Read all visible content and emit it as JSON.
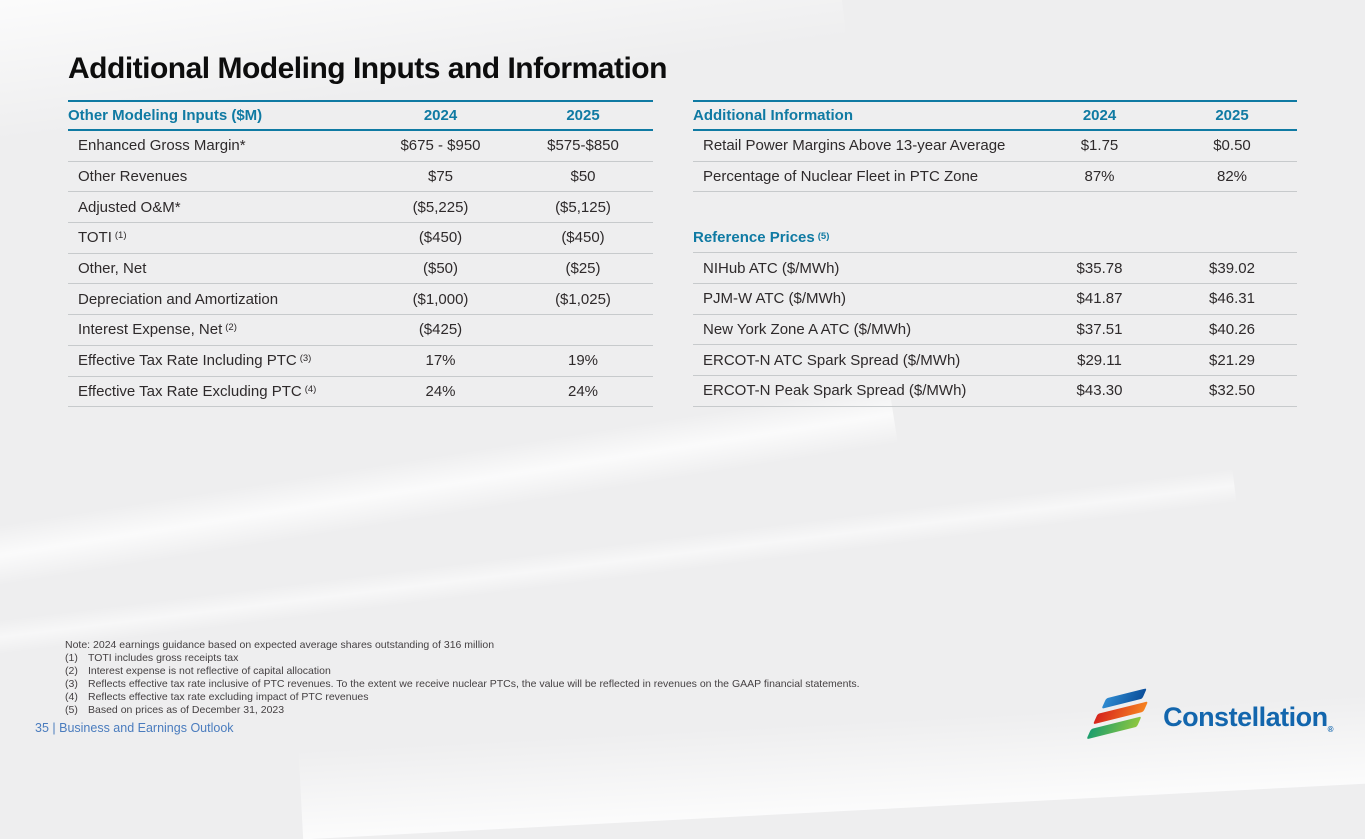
{
  "slide": {
    "title": "Additional Modeling Inputs and Information",
    "footer": {
      "page": "35",
      "separator": " | ",
      "section": "Business and Earnings Outlook"
    },
    "logo": {
      "text": "Constellation",
      "reg": "®"
    }
  },
  "colors": {
    "accent_teal": "#0f7aa3",
    "body_text": "#2e2a2b",
    "row_divider": "#c7cacc",
    "background": "#eeeeef",
    "footer_blue": "#4a7cbe",
    "logo_blue": "#1366ad",
    "logo_red": "#d6251d",
    "logo_orange": "#f58220",
    "logo_green": "#8dc63f"
  },
  "left_table": {
    "headers": {
      "label": "Other Modeling Inputs ($M)",
      "col1": "2024",
      "col2": "2025"
    },
    "rows": [
      {
        "label": "Enhanced Gross Margin*",
        "y2024": "$675 - $950",
        "y2025": "$575-$850"
      },
      {
        "label": "Other Revenues",
        "y2024": "$75",
        "y2025": "$50"
      },
      {
        "label": "Adjusted O&M*",
        "y2024": "($5,225)",
        "y2025": "($5,125)"
      },
      {
        "label": "TOTI",
        "sup": "(1)",
        "y2024": "($450)",
        "y2025": "($450)"
      },
      {
        "label": "Other, Net",
        "y2024": "($50)",
        "y2025": "($25)"
      },
      {
        "label": "Depreciation and Amortization",
        "y2024": "($1,000)",
        "y2025": "($1,025)"
      },
      {
        "label": "Interest Expense, Net",
        "sup": "(2)",
        "y2024": "($425)",
        "y2025": ""
      },
      {
        "label": "Effective Tax Rate Including PTC",
        "sup": "(3)",
        "y2024": "17%",
        "y2025": "19%"
      },
      {
        "label": "Effective Tax Rate Excluding PTC",
        "sup": "(4)",
        "y2024": "24%",
        "y2025": "24%"
      }
    ]
  },
  "right_table": {
    "headers": {
      "label": "Additional Information",
      "col1": "2024",
      "col2": "2025"
    },
    "rows": [
      {
        "label": "Retail Power Margins Above 13-year Average",
        "y2024": "$1.75",
        "y2025": "$0.50"
      },
      {
        "label": "Percentage of Nuclear Fleet in PTC Zone",
        "y2024": "87%",
        "y2025": "82%"
      }
    ],
    "subheader": {
      "label": "Reference Prices",
      "sup": "(5)"
    },
    "reference_rows": [
      {
        "label": "NIHub ATC ($/MWh)",
        "y2024": "$35.78",
        "y2025": "$39.02"
      },
      {
        "label": "PJM-W ATC ($/MWh)",
        "y2024": "$41.87",
        "y2025": "$46.31"
      },
      {
        "label": "New York Zone A ATC ($/MWh)",
        "y2024": "$37.51",
        "y2025": "$40.26"
      },
      {
        "label": "ERCOT-N ATC Spark Spread ($/MWh)",
        "y2024": "$29.11",
        "y2025": "$21.29"
      },
      {
        "label": "ERCOT-N Peak Spark Spread ($/MWh)",
        "y2024": "$43.30",
        "y2025": "$32.50"
      }
    ]
  },
  "footnotes": [
    {
      "text": "Note: 2024 earnings guidance based on expected average shares outstanding of 316 million"
    },
    {
      "marker": "(1)",
      "text": "TOTI includes gross receipts tax"
    },
    {
      "marker": "(2)",
      "text": "Interest expense is not reflective of capital allocation"
    },
    {
      "marker": "(3)",
      "text": "Reflects effective tax rate inclusive of PTC revenues. To the extent we receive nuclear PTCs, the value will be reflected in revenues on the GAAP financial statements."
    },
    {
      "marker": "(4)",
      "text": "Reflects effective tax rate excluding impact of PTC revenues"
    },
    {
      "marker": "(5)",
      "text": "Based on prices as of December 31, 2023"
    }
  ]
}
